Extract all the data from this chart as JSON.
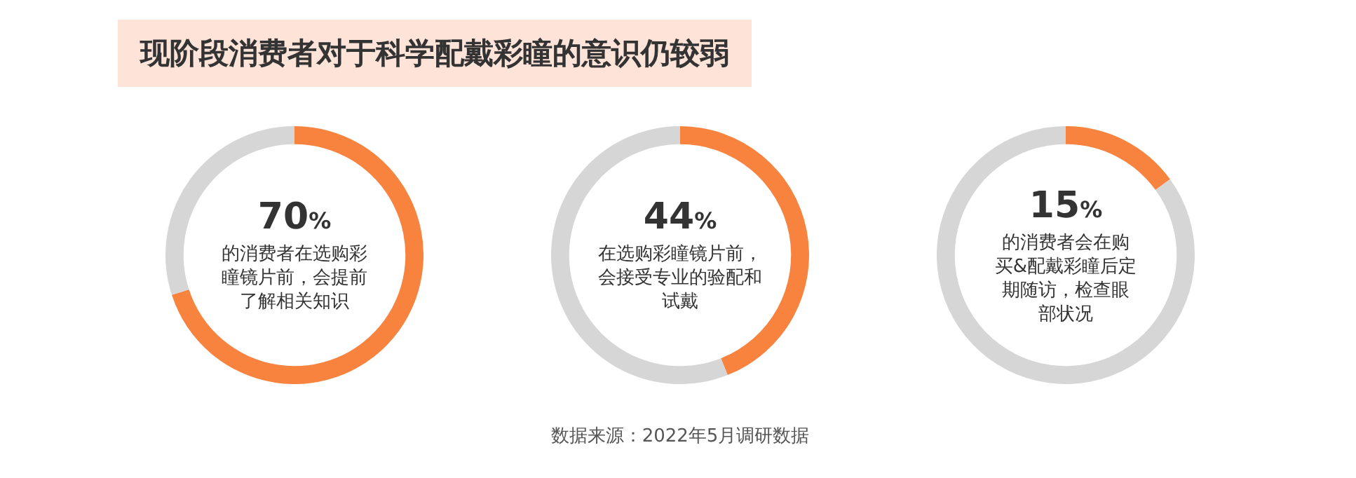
{
  "chart_data": [
    {
      "type": "donut",
      "title": "现阶段消费者对于科学配戴彩瞳的意识仍较弱",
      "categories": [
        null,
        null
      ],
      "values": [
        70,
        30
      ],
      "colors": [
        "#f7833f",
        "#d6d6d6"
      ],
      "value_labels": [
        "70%",
        null
      ],
      "annotations": [
        "的消费者在选购彩瞳镜片前，会提前了解相关知识"
      ]
    },
    {
      "type": "donut",
      "categories": [
        null,
        null
      ],
      "values": [
        44,
        56
      ],
      "colors": [
        "#f7833f",
        "#d6d6d6"
      ],
      "value_labels": [
        "44%",
        null
      ],
      "annotations": [
        "在选购彩瞳镜片前，会接受专业的验配和试戴",
        "数据来源：2022年5月调研数据"
      ]
    },
    {
      "type": "donut",
      "categories": [
        null,
        null
      ],
      "values": [
        15,
        85
      ],
      "colors": [
        "#f7833f",
        "#d6d6d6"
      ],
      "value_labels": [
        "15%",
        null
      ],
      "annotations": [
        "的消费者会在购买&配戴彩瞳后定期随访，检查眼部状况"
      ]
    }
  ]
}
